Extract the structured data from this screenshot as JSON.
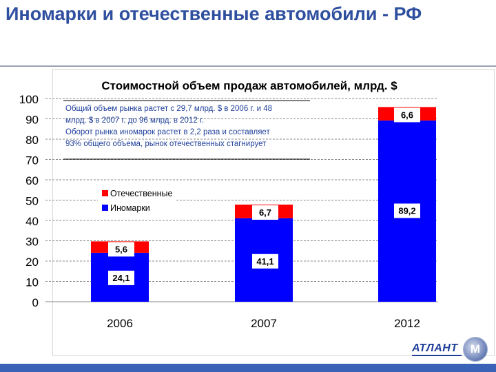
{
  "slide": {
    "title": "Иномарки и отечественные автомобили - РФ"
  },
  "chart_data": {
    "type": "bar",
    "stacked": true,
    "title": "Стоимостной объем продаж автомобилей, млрд. $",
    "xlabel": "",
    "ylabel": "",
    "categories": [
      "2006",
      "2007",
      "2012"
    ],
    "series": [
      {
        "name": "Иномарки",
        "values": [
          24.1,
          41.1,
          89.2
        ],
        "labels": [
          "24,1",
          "41,1",
          "89,2"
        ],
        "color": "#0000ff"
      },
      {
        "name": "Отечественные",
        "values": [
          5.6,
          6.7,
          6.6
        ],
        "labels": [
          "5,6",
          "6,7",
          "6,6"
        ],
        "color": "#ff0000"
      }
    ],
    "ylim": [
      0,
      100
    ],
    "yticks": [
      0,
      10,
      20,
      30,
      40,
      50,
      60,
      70,
      80,
      90,
      100
    ],
    "grid": true,
    "legend_position": "left",
    "annotation": [
      "Общий объем рынка растет с 29,7 млрд. $ в 2006 г. и 48",
      "млрд. $ в 2007 г. до 96 млрд. в 2012 г.",
      "Оборот рынка иномарок растет в 2,2 раза и составляет",
      "93% общего объема, рынок отечественных стагнирует"
    ]
  },
  "logo": {
    "name": "АТЛАНТ",
    "mark": "M"
  },
  "colors": {
    "title": "#2f4f9f",
    "foreign": "#0000ff",
    "domestic": "#ff0000",
    "bottom_bar": "#3a63b8"
  }
}
